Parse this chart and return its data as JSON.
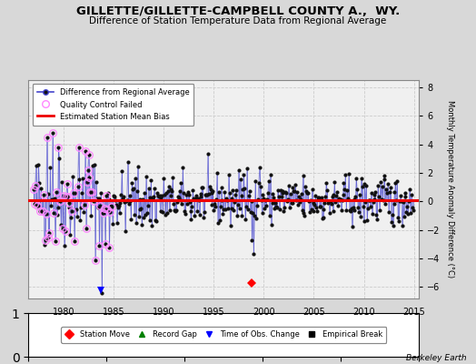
{
  "title": "GILLETTE/GILLETTE-CAMPBELL COUNTY A.,  WY.",
  "subtitle": "Difference of Station Temperature Data from Regional Average",
  "ylabel": "Monthly Temperature Anomaly Difference (°C)",
  "xlim": [
    1976.5,
    2015.5
  ],
  "ylim": [
    -6.8,
    8.5
  ],
  "yticks": [
    -6,
    -4,
    -2,
    0,
    2,
    4,
    6,
    8
  ],
  "xticks": [
    1980,
    1985,
    1990,
    1995,
    2000,
    2005,
    2010,
    2015
  ],
  "mean_bias": 0.1,
  "bias_color": "#ee0000",
  "line_color": "#4444cc",
  "line_color_fill": "#8888dd",
  "marker_color": "#111111",
  "qc_color": "#ff88ff",
  "background_color": "#d8d8d8",
  "plot_bg_color": "#f0f0f0",
  "grid_color": "#cccccc",
  "station_move_year": 1998.75,
  "station_move_value": -5.7,
  "time_of_obs_year": 1983.75,
  "time_of_obs_value": -6.2,
  "start_year": 1977.0,
  "end_year": 2015.0,
  "seed": 42
}
